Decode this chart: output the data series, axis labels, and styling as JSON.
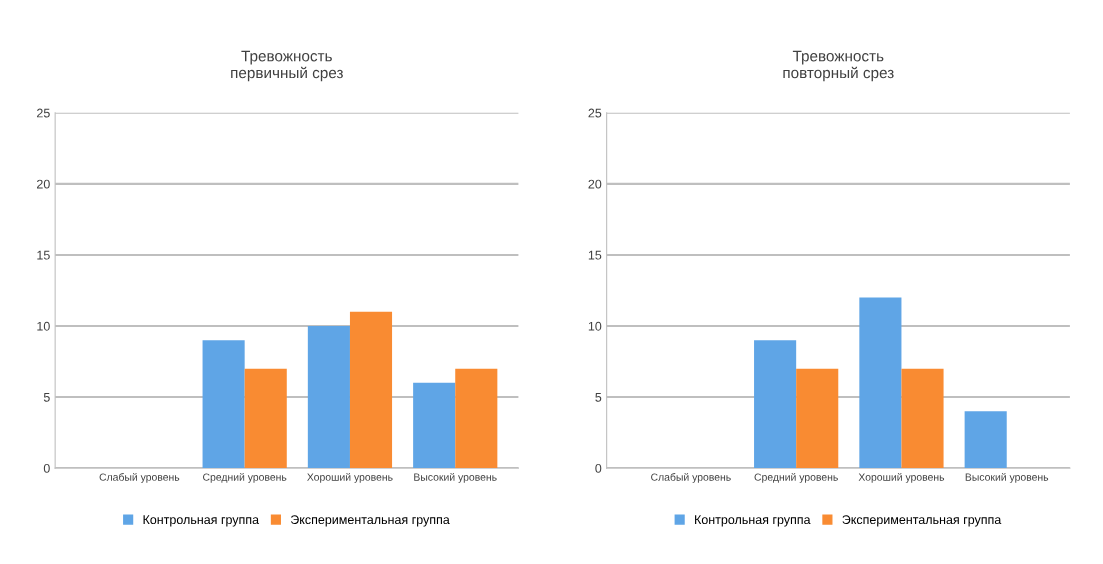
{
  "chart_data": [
    {
      "type": "bar",
      "title": "Тревожность\nпервичный срез",
      "categories": [
        "Слабый уровень",
        "Средний уровень",
        "Хороший уровень",
        "Высокий уровень"
      ],
      "series": [
        {
          "name": "Контрольная группа",
          "color": "#5fa5e6",
          "values": [
            0,
            9,
            10,
            6
          ]
        },
        {
          "name": "Экспериментальная группа",
          "color": "#f98b32",
          "values": [
            0,
            7,
            11,
            7
          ]
        }
      ],
      "ylim": [
        0,
        25
      ],
      "yticks": [
        0,
        5,
        10,
        15,
        20,
        25
      ],
      "grid": "y",
      "legend": "bottom"
    },
    {
      "type": "bar",
      "title": "Тревожность\nповторный срез",
      "categories": [
        "Слабый уровень",
        "Средний уровень",
        "Хороший уровень",
        "Высокий уровень"
      ],
      "series": [
        {
          "name": "Контрольная группа",
          "color": "#5fa5e6",
          "values": [
            0,
            9,
            12,
            4
          ]
        },
        {
          "name": "Экспериментальная группа",
          "color": "#f98b32",
          "values": [
            0,
            7,
            7,
            0
          ]
        }
      ],
      "ylim": [
        0,
        25
      ],
      "yticks": [
        0,
        5,
        10,
        15,
        20,
        25
      ],
      "grid": "y",
      "legend": "bottom"
    }
  ]
}
